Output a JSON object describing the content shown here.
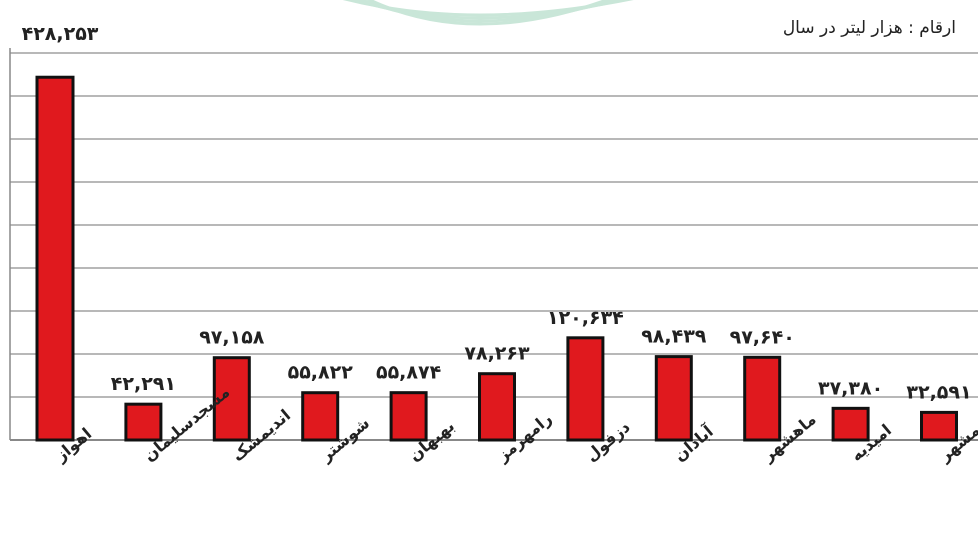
{
  "note": "ارقام : هزار لیتر در سال",
  "colors": {
    "bar": "#e0191e",
    "bar_stroke": "#111111",
    "grid": "#b8b8b8",
    "frame": "#888888",
    "text": "#222222",
    "watermark": "#c9e6d8"
  },
  "chart_data": {
    "type": "bar",
    "title": "",
    "xlabel": "",
    "ylabel": "",
    "unit": "ارقام : هزار لیتر در سال",
    "ylim": [
      0,
      500000
    ],
    "grid": true,
    "legend": "none",
    "categories": [
      "اهواز",
      "مسجدسلیمان",
      "اندیمشک",
      "شوشتر",
      "بهبهان",
      "رامهرمز",
      "دزفول",
      "آبادان",
      "ماهشهر",
      "امیدیه",
      "خرمشهر"
    ],
    "values": [
      428253,
      42291,
      97158,
      55822,
      55874,
      78263,
      120634,
      98439,
      97640,
      37380,
      32591
    ],
    "value_labels": [
      "۴۲۸,۲۵۳",
      "۴۲,۲۹۱",
      "۹۷,۱۵۸",
      "۵۵,۸۲۲",
      "۵۵,۸۷۴",
      "۷۸,۲۶۳",
      "۱۲۰,۶۳۴",
      "۹۸,۴۳۹",
      "۹۷,۶۴۰",
      "۳۷,۳۸۰",
      "۳۲,۵۹۱"
    ]
  }
}
